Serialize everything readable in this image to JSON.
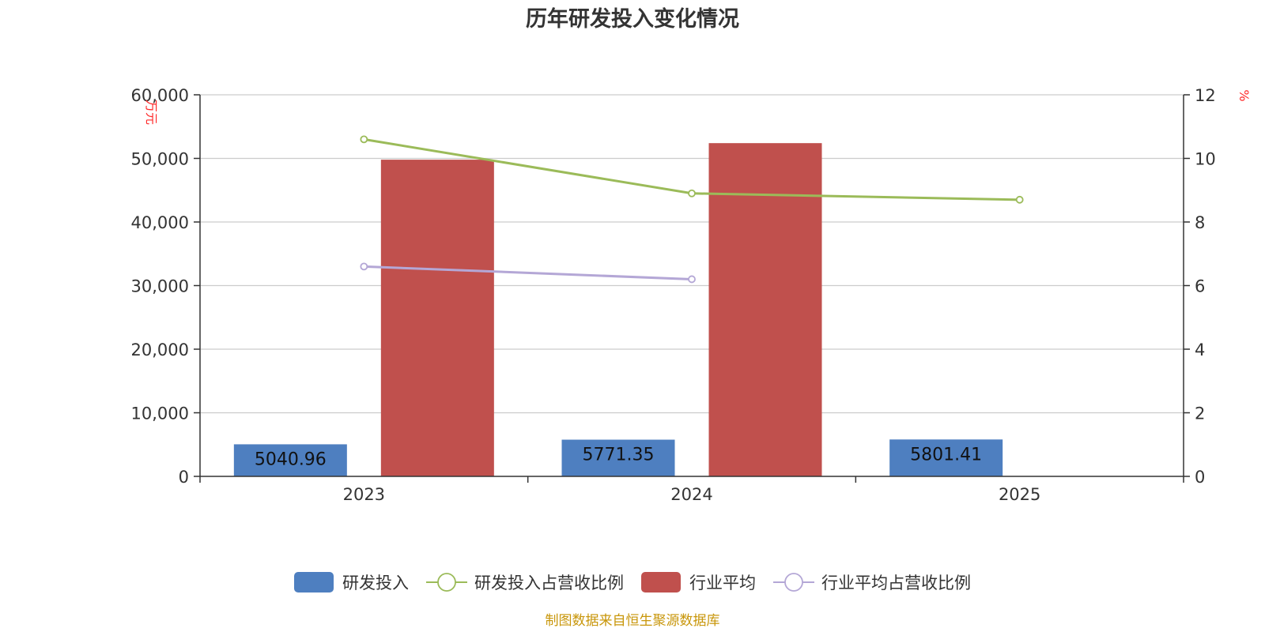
{
  "chart_data": {
    "type": "bar",
    "title": "历年研发投入变化情况",
    "categories": [
      "2023",
      "2024",
      "2025"
    ],
    "y_left": {
      "unit": "万元",
      "ylim": [
        0,
        60000
      ],
      "ticks": [
        0,
        10000,
        20000,
        30000,
        40000,
        50000,
        60000
      ],
      "tick_labels": [
        "0",
        "10,000",
        "20,000",
        "30,000",
        "40,000",
        "50,000",
        "60,000"
      ]
    },
    "y_right": {
      "unit": "%",
      "ylim": [
        0,
        12
      ],
      "ticks": [
        0,
        2,
        4,
        6,
        8,
        10,
        12
      ],
      "tick_labels": [
        "0",
        "2",
        "4",
        "6",
        "8",
        "10",
        "12"
      ]
    },
    "series": [
      {
        "name": "研发投入",
        "kind": "bar",
        "axis": "left",
        "color": "#4e7fc0",
        "values": [
          5040.96,
          5771.35,
          5801.41
        ],
        "labels": [
          "5040.96",
          "5771.35",
          "5801.41"
        ]
      },
      {
        "name": "研发投入占营收比例",
        "kind": "line",
        "axis": "right",
        "color": "#9bbb59",
        "values": [
          10.6,
          8.9,
          8.7
        ]
      },
      {
        "name": "行业平均",
        "kind": "bar",
        "axis": "left",
        "color": "#c0504d",
        "values": [
          49800,
          52400,
          null
        ]
      },
      {
        "name": "行业平均占营收比例",
        "kind": "line",
        "axis": "right",
        "color": "#b4a7d6",
        "values": [
          6.6,
          6.2,
          null
        ]
      }
    ],
    "grid": true,
    "legend_position": "bottom"
  },
  "footer": {
    "source": "制图数据来自恒生聚源数据库"
  }
}
